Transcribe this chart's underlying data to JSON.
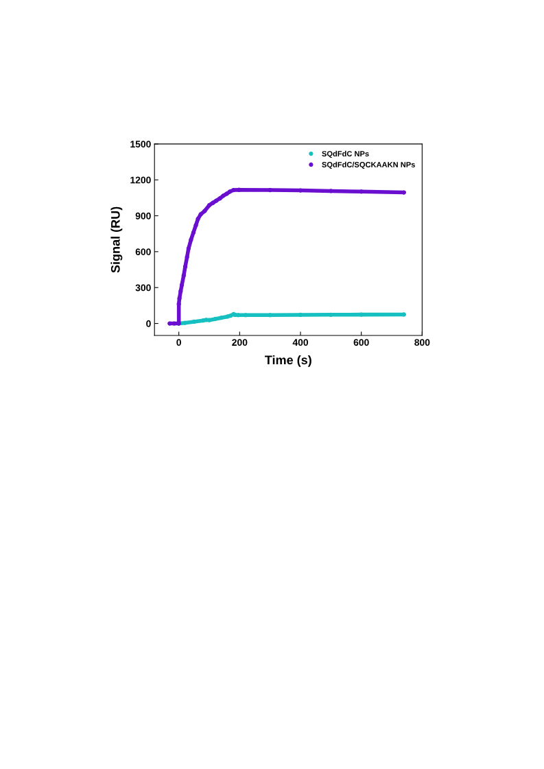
{
  "chart_data": {
    "type": "line",
    "xlabel": "Time (s)",
    "ylabel": "Signal (RU)",
    "xlim": [
      -80,
      800
    ],
    "xticks": [
      0,
      200,
      400,
      600,
      800
    ],
    "ylim": [
      -100,
      1500
    ],
    "yticks": [
      0,
      300,
      600,
      900,
      1200,
      1500
    ],
    "grid": false,
    "legend": "top right",
    "marker": "circle",
    "line_style": "solid",
    "series": [
      {
        "name": "SQdFdC NPs",
        "color": "#17c0c0",
        "x": [
          0,
          20,
          50,
          80,
          90,
          100,
          120,
          140,
          160,
          170,
          180,
          185,
          195,
          220,
          300,
          400,
          500,
          600,
          740
        ],
        "values": [
          0,
          5,
          15,
          25,
          30,
          28,
          38,
          48,
          58,
          65,
          78,
          72,
          70,
          70,
          70,
          72,
          73,
          74,
          75
        ]
      },
      {
        "name": "SQdFdC/SQCKAAKN NPs",
        "color": "#6a0fd0",
        "x": [
          -30,
          -15,
          0,
          0,
          2,
          6,
          10,
          16,
          21,
          27,
          32,
          40,
          48,
          56,
          63,
          72,
          85,
          100,
          112,
          123,
          135,
          146,
          158,
          168,
          180,
          198,
          300,
          400,
          500,
          600,
          740
        ],
        "values": [
          0,
          0,
          0,
          162,
          209,
          270,
          323,
          400,
          475,
          555,
          627,
          700,
          760,
          820,
          874,
          912,
          940,
          988,
          1008,
          1026,
          1045,
          1067,
          1085,
          1102,
          1115,
          1117,
          1115,
          1112,
          1107,
          1102,
          1095
        ]
      }
    ]
  }
}
